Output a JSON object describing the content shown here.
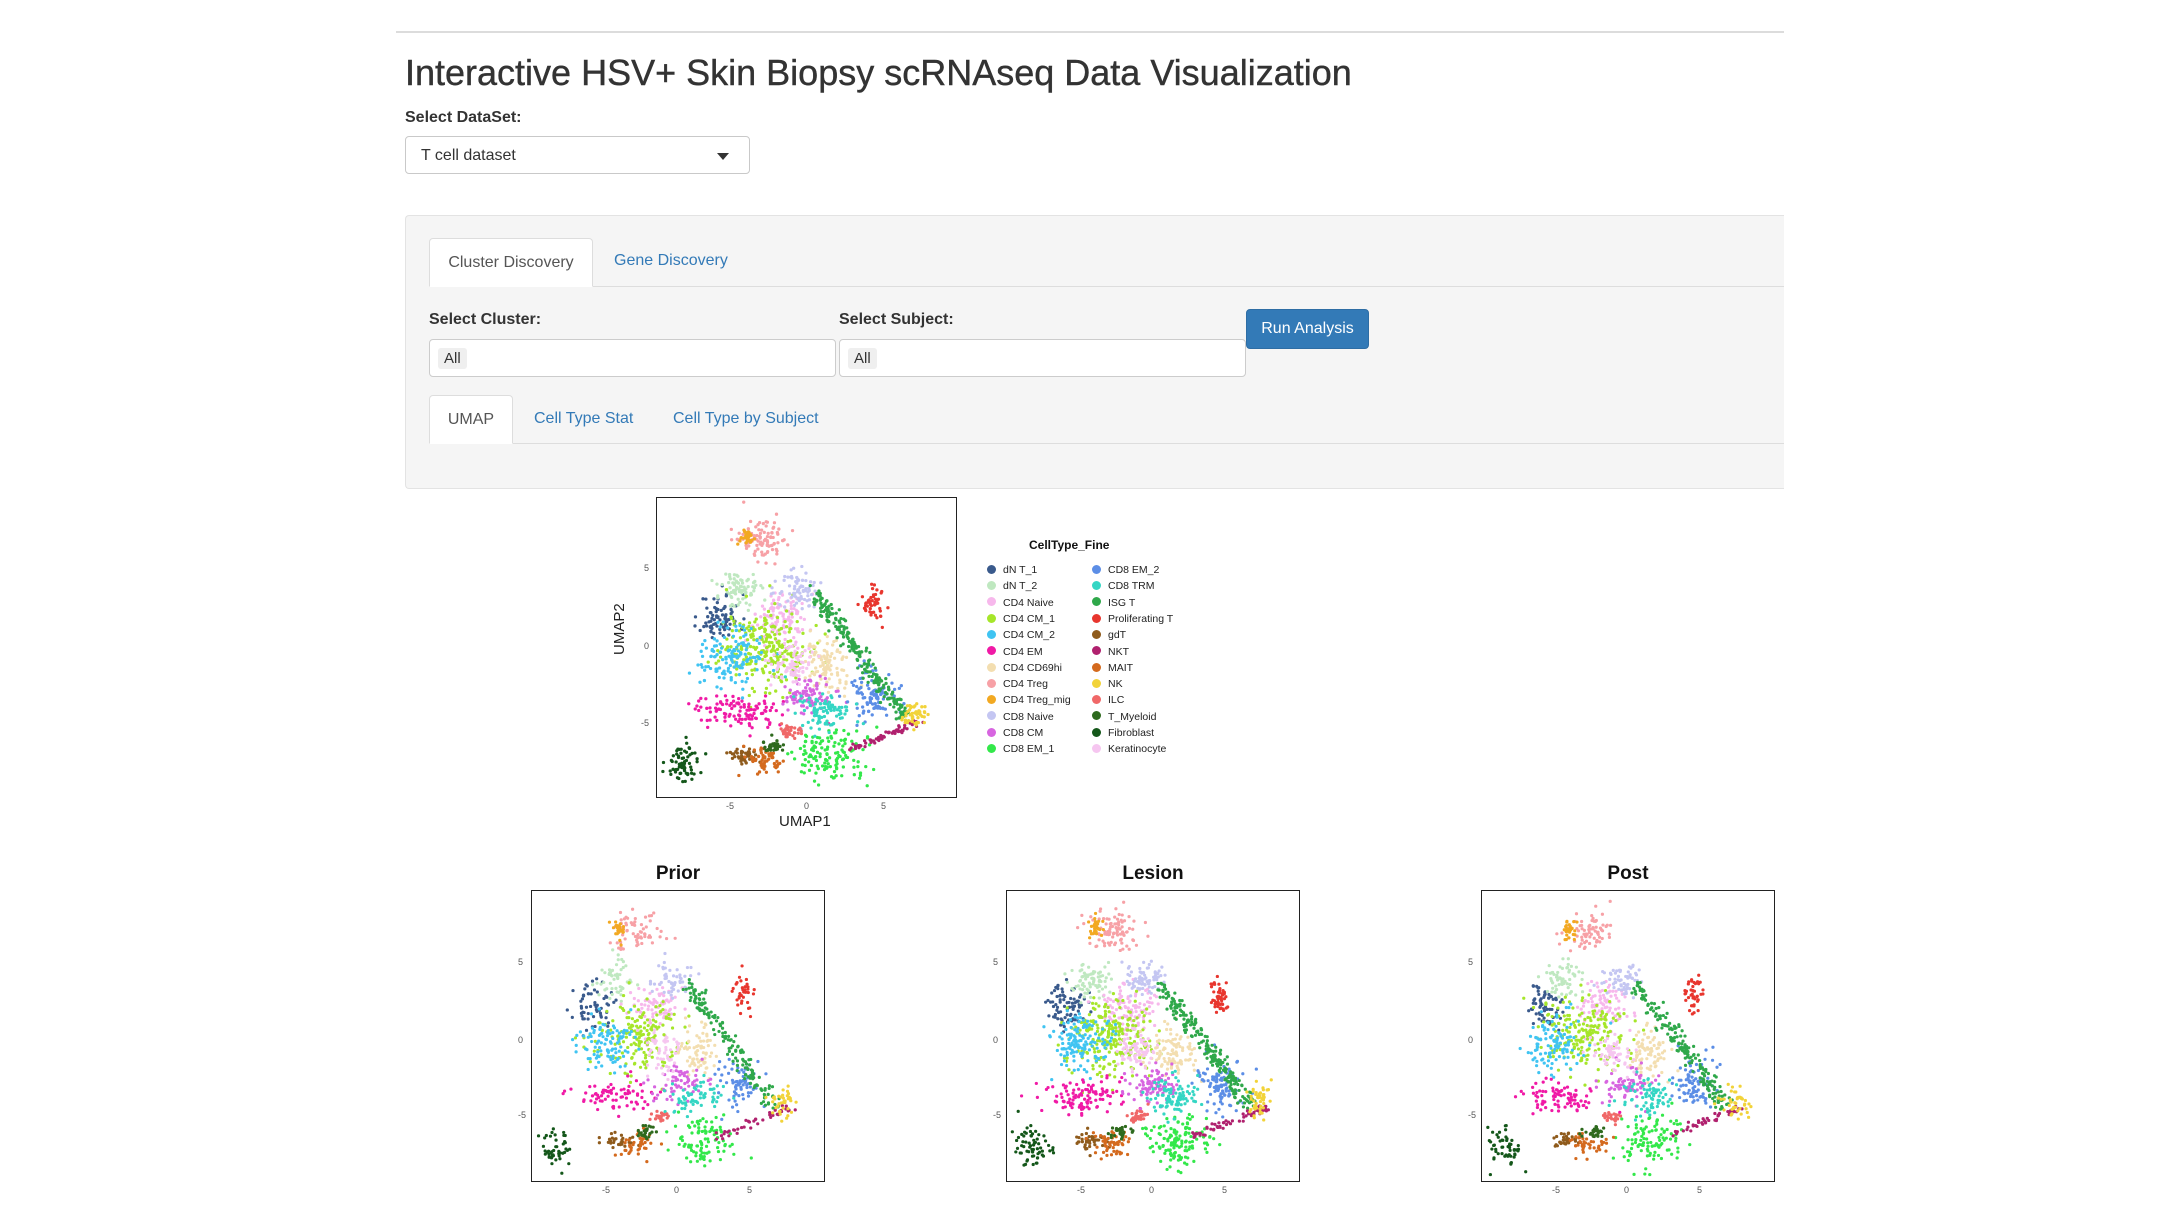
{
  "page": {
    "title": "Interactive HSV+ Skin Biopsy scRNAseq Data Visualization"
  },
  "dataset": {
    "label": "Select DataSet:",
    "value": "T cell dataset"
  },
  "tabs": {
    "main": [
      {
        "label": "Cluster Discovery",
        "active": true
      },
      {
        "label": "Gene Discovery",
        "active": false
      }
    ],
    "sub": [
      {
        "label": "UMAP",
        "active": true
      },
      {
        "label": "Cell Type Stat",
        "active": false
      },
      {
        "label": "Cell Type by Subject",
        "active": false
      }
    ]
  },
  "filters": {
    "cluster": {
      "label": "Select Cluster:",
      "value": "All"
    },
    "subject": {
      "label": "Select Subject:",
      "value": "All"
    }
  },
  "actions": {
    "run_label": "Run Analysis"
  },
  "umap": {
    "xlabel": "UMAP1",
    "ylabel": "UMAP2",
    "xticks": [
      "-5",
      "0",
      "5"
    ],
    "yticks": [
      "5",
      "0",
      "-5"
    ],
    "legend_title": "CellType_Fine",
    "panels": [
      "Prior",
      "Lesion",
      "Post"
    ]
  },
  "chart_data": {
    "type": "scatter",
    "title": "",
    "xlabel": "UMAP1",
    "ylabel": "UMAP2",
    "xlim": [
      -8,
      10
    ],
    "ylim": [
      -8,
      10
    ],
    "legend": "right",
    "grid": false,
    "series": [
      {
        "name": "dN T_1",
        "color": "#3a5a8c",
        "cx": -4.2,
        "cy": 2.8,
        "sx": 0.6,
        "sy": 0.7
      },
      {
        "name": "dN T_2",
        "color": "#bfe8c0",
        "cx": -3.0,
        "cy": 4.5,
        "sx": 0.6,
        "sy": 0.6
      },
      {
        "name": "CD4 Naive",
        "color": "#f7b8ec",
        "cx": -0.5,
        "cy": 2.8,
        "sx": 0.8,
        "sy": 0.8
      },
      {
        "name": "CD4 CM_1",
        "color": "#a6e62a",
        "cx": -1.5,
        "cy": 1.0,
        "sx": 1.3,
        "sy": 1.2
      },
      {
        "name": "CD4 CM_2",
        "color": "#40c4f2",
        "cx": -3.5,
        "cy": 0.5,
        "sx": 0.9,
        "sy": 0.9
      },
      {
        "name": "CD4 EM",
        "color": "#f01aa6",
        "cx": -3.2,
        "cy": -2.8,
        "sx": 1.2,
        "sy": 0.5
      },
      {
        "name": "CD4 CD69hi",
        "color": "#f3deb0",
        "cx": 2.2,
        "cy": 0.0,
        "sx": 0.7,
        "sy": 0.8
      },
      {
        "name": "CD4 Treg",
        "color": "#f7a1a6",
        "cx": -1.5,
        "cy": 7.5,
        "sx": 0.8,
        "sy": 0.6
      },
      {
        "name": "CD4 Treg_mig",
        "color": "#f2a922",
        "cx": -2.6,
        "cy": 7.6,
        "sx": 0.2,
        "sy": 0.3
      },
      {
        "name": "CD8 Naive",
        "color": "#c4c6f2",
        "cx": 0.5,
        "cy": 4.5,
        "sx": 0.7,
        "sy": 0.5
      },
      {
        "name": "CD8 CM",
        "color": "#d765e0",
        "cx": 1.0,
        "cy": -2.0,
        "sx": 0.8,
        "sy": 0.6
      },
      {
        "name": "CD8 EM_1",
        "color": "#33e84a",
        "cx": 2.5,
        "cy": -5.5,
        "sx": 1.0,
        "sy": 0.8
      },
      {
        "name": "CD8 EM_2",
        "color": "#5c8ee6",
        "cx": 5.0,
        "cy": -2.0,
        "sx": 0.7,
        "sy": 0.8
      },
      {
        "name": "CD8 TRM",
        "color": "#35d6c4",
        "cx": 2.2,
        "cy": -2.8,
        "sx": 0.8,
        "sy": 0.6
      },
      {
        "name": "ISG T",
        "color": "#2fa84a",
        "cx": 4.5,
        "cy": 1.5,
        "sx": 0.9,
        "sy": 1.6
      },
      {
        "name": "Proliferating T",
        "color": "#e8362e",
        "cx": 5.0,
        "cy": 3.5,
        "sx": 0.3,
        "sy": 0.6
      },
      {
        "name": "gdT",
        "color": "#8f5b1c",
        "cx": -2.8,
        "cy": -5.5,
        "sx": 0.5,
        "sy": 0.25
      },
      {
        "name": "NKT",
        "color": "#b0216e",
        "cx": 6.5,
        "cy": -4.5,
        "sx": 0.8,
        "sy": 0.3
      },
      {
        "name": "MAIT",
        "color": "#d46a1e",
        "cx": -1.5,
        "cy": -5.8,
        "sx": 0.6,
        "sy": 0.4
      },
      {
        "name": "NK",
        "color": "#f2d33a",
        "cx": 7.5,
        "cy": -3.0,
        "sx": 0.4,
        "sy": 0.5
      },
      {
        "name": "ILC",
        "color": "#f06868",
        "cx": 0.0,
        "cy": -4.0,
        "sx": 0.3,
        "sy": 0.2
      },
      {
        "name": "T_Myeloid",
        "color": "#2e6a1e",
        "cx": -1.0,
        "cy": -5.0,
        "sx": 0.3,
        "sy": 0.2
      },
      {
        "name": "Fibroblast",
        "color": "#14571a",
        "cx": -6.5,
        "cy": -6.0,
        "sx": 0.5,
        "sy": 0.6
      },
      {
        "name": "Keratinocyte",
        "color": "#f6c6f0",
        "cx": 0.0,
        "cy": 0.0,
        "sx": 0.6,
        "sy": 0.6
      }
    ]
  }
}
